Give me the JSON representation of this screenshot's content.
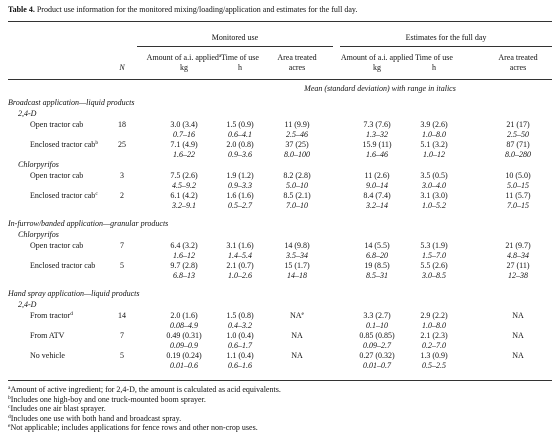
{
  "caption": {
    "label": "Table 4.",
    "text": "Product use information for the monitored mixing/loading/application and estimates for the full day."
  },
  "header": {
    "groups": [
      "Monitored use",
      "Estimates for the full day"
    ],
    "n": "N",
    "columns": [
      {
        "name": "Amount of a.i. applied",
        "sup": "a",
        "unit": "kg"
      },
      {
        "name": "Time of use",
        "unit": "h"
      },
      {
        "name": "Area treated",
        "unit": "acres"
      },
      {
        "name": "Amount of a.i. applied",
        "unit": "kg"
      },
      {
        "name": "Time of use",
        "unit": "h"
      },
      {
        "name": "Area treated",
        "unit": "acres"
      }
    ],
    "note": "Mean (standard deviation) with range in italics"
  },
  "sections": [
    {
      "title": "Broadcast application—liquid products",
      "groups": [
        {
          "title": "2,4-D",
          "rows": [
            {
              "label": "Open tractor cab",
              "n": "18",
              "cells": [
                {
                  "mean": "3.0 (3.4)",
                  "range": "0.7–16"
                },
                {
                  "mean": "1.5 (0.9)",
                  "range": "0.6–4.1"
                },
                {
                  "mean": "11 (9.9)",
                  "range": "2.5–46"
                },
                {
                  "mean": "7.3 (7.6)",
                  "range": "1.3–32"
                },
                {
                  "mean": "3.9 (2.6)",
                  "range": "1.0–8.0"
                },
                {
                  "mean": "21 (17)",
                  "range": "2.5–50"
                }
              ]
            },
            {
              "label": "Enclosed tractor cab",
              "sup": "b",
              "n": "25",
              "cells": [
                {
                  "mean": "7.1 (4.9)",
                  "range": "1.6–22"
                },
                {
                  "mean": "2.0 (0.8)",
                  "range": "0.9–3.6"
                },
                {
                  "mean": "37 (25)",
                  "range": "8.0–100"
                },
                {
                  "mean": "15.9 (11)",
                  "range": "1.6–46"
                },
                {
                  "mean": "5.1 (3.2)",
                  "range": "1.0–12"
                },
                {
                  "mean": "87 (71)",
                  "range": "8.0–280"
                }
              ]
            }
          ]
        },
        {
          "title": "Chlorpyrifos",
          "rows": [
            {
              "label": "Open tractor cab",
              "n": "3",
              "cells": [
                {
                  "mean": "7.5 (2.6)",
                  "range": "4.5–9.2"
                },
                {
                  "mean": "1.9 (1.2)",
                  "range": "0.9–3.3"
                },
                {
                  "mean": "8.2 (2.8)",
                  "range": "5.0–10"
                },
                {
                  "mean": "11 (2.6)",
                  "range": "9.0–14"
                },
                {
                  "mean": "3.5 (0.5)",
                  "range": "3.0–4.0"
                },
                {
                  "mean": "10 (5.0)",
                  "range": "5.0–15"
                }
              ]
            },
            {
              "label": "Enclosed tractor cab",
              "sup": "c",
              "n": "2",
              "cells": [
                {
                  "mean": "6.1 (4.2)",
                  "range": "3.2–9.1"
                },
                {
                  "mean": "1.6 (1.6)",
                  "range": "0.5–2.7"
                },
                {
                  "mean": "8.5 (2.1)",
                  "range": "7.0–10"
                },
                {
                  "mean": "8.4 (7.4)",
                  "range": "3.2–14"
                },
                {
                  "mean": "3.1 (3.0)",
                  "range": "1.0–5.2"
                },
                {
                  "mean": "11 (5.7)",
                  "range": "7.0–15"
                }
              ]
            }
          ]
        }
      ]
    },
    {
      "title": "In-furrow/banded application—granular products",
      "groups": [
        {
          "title": "Chlorpyrifos",
          "rows": [
            {
              "label": "Open tractor cab",
              "n": "7",
              "cells": [
                {
                  "mean": "6.4 (3.2)",
                  "range": "1.6–12"
                },
                {
                  "mean": "3.1 (1.6)",
                  "range": "1.4–5.4"
                },
                {
                  "mean": "14 (9.8)",
                  "range": "3.5–34"
                },
                {
                  "mean": "14 (5.5)",
                  "range": "6.8–20"
                },
                {
                  "mean": "5.3 (1.9)",
                  "range": "1.5–7.0"
                },
                {
                  "mean": "21 (9.7)",
                  "range": "4.8–34"
                }
              ]
            },
            {
              "label": "Enclosed tractor cab",
              "n": "5",
              "cells": [
                {
                  "mean": "9.7 (2.8)",
                  "range": "6.8–13"
                },
                {
                  "mean": "2.1 (0.7)",
                  "range": "1.0–2.6"
                },
                {
                  "mean": "15 (1.7)",
                  "range": "14–18"
                },
                {
                  "mean": "19 (8.5)",
                  "range": "8.5–31"
                },
                {
                  "mean": "5.5 (2.6)",
                  "range": "3.0–8.5"
                },
                {
                  "mean": "27 (11)",
                  "range": "12–38"
                }
              ]
            }
          ]
        }
      ]
    },
    {
      "title": "Hand spray application—liquid products",
      "groups": [
        {
          "title": "2,4-D",
          "rows": [
            {
              "label": "From tractor",
              "sup": "d",
              "n": "14",
              "cells": [
                {
                  "mean": "2.0 (1.6)",
                  "range": "0.08–4.9"
                },
                {
                  "mean": "1.5 (0.8)",
                  "range": "0.4–3.2"
                },
                {
                  "mean": "NA",
                  "sup": "e"
                },
                {
                  "mean": "3.3 (2.7)",
                  "range": "0.1–10"
                },
                {
                  "mean": "2.9 (2.2)",
                  "range": "1.0–8.0"
                },
                {
                  "mean": "NA"
                }
              ]
            },
            {
              "label": "From ATV",
              "n": "7",
              "cells": [
                {
                  "mean": "0.49 (0.31)",
                  "range": "0.09–0.9"
                },
                {
                  "mean": "1.0 (0.4)",
                  "range": "0.6–1.7"
                },
                {
                  "mean": "NA"
                },
                {
                  "mean": "0.85 (0.85)",
                  "range": "0.09–2.7"
                },
                {
                  "mean": "2.1 (2.3)",
                  "range": "0.2–7.0"
                },
                {
                  "mean": "NA"
                }
              ]
            },
            {
              "label": "No vehicle",
              "n": "5",
              "cells": [
                {
                  "mean": "0.19 (0.24)",
                  "range": "0.01–0.6"
                },
                {
                  "mean": "1.1 (0.4)",
                  "range": "0.6–1.6"
                },
                {
                  "mean": "NA"
                },
                {
                  "mean": "0.27 (0.32)",
                  "range": "0.01–0.7"
                },
                {
                  "mean": "1.3 (0.9)",
                  "range": "0.5–2.5"
                },
                {
                  "mean": "NA"
                }
              ]
            }
          ]
        }
      ]
    }
  ],
  "footnotes": [
    {
      "mark": "a",
      "text": "Amount of active ingredient; for 2,4-D, the amount is calculated as acid equivalents."
    },
    {
      "mark": "b",
      "text": "Includes one high-boy and one truck-mounted boom sprayer."
    },
    {
      "mark": "c",
      "text": "Includes one air blast sprayer."
    },
    {
      "mark": "d",
      "text": "Includes one use with both hand and broadcast spray."
    },
    {
      "mark": "e",
      "text": "Not applicable; includes applications for fence rows and other non-crop uses."
    }
  ]
}
